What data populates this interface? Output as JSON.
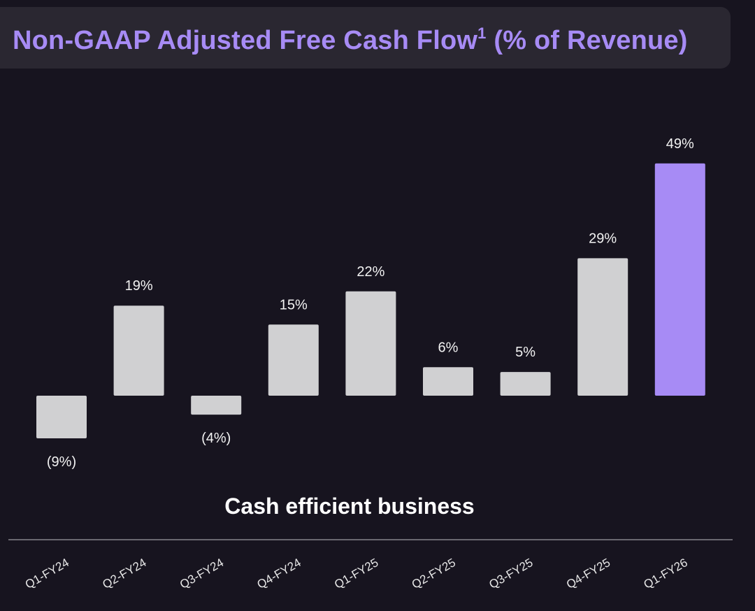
{
  "chart_data": {
    "type": "bar",
    "title": "Non-GAAP Adjusted Free Cash Flow",
    "title_superscript": "1",
    "title_suffix": "(% of Revenue)",
    "caption": "Cash efficient business",
    "categories": [
      "Q1-FY24",
      "Q2-FY24",
      "Q3-FY24",
      "Q4-FY24",
      "Q1-FY25",
      "Q2-FY25",
      "Q3-FY25",
      "Q4-FY25",
      "Q1-FY26"
    ],
    "values": [
      -9,
      19,
      -4,
      15,
      22,
      6,
      5,
      29,
      49
    ],
    "labels": [
      "(9%)",
      "19%",
      "(4%)",
      "15%",
      "22%",
      "6%",
      "5%",
      "29%",
      "49%"
    ],
    "highlight_index": 8,
    "ylim": [
      -9,
      49
    ],
    "grid": false,
    "legend": "none",
    "colors": {
      "bar": "#d0d0d2",
      "highlight": "#a78bf5",
      "title": "#a78bf5",
      "axis": "#6a6870",
      "background": "#17141f"
    }
  }
}
